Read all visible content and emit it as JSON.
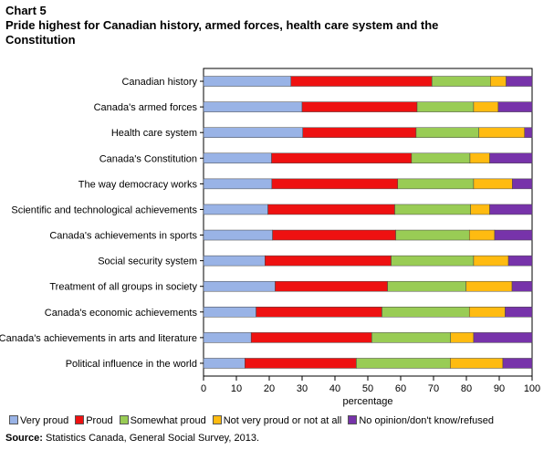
{
  "chart_label": "Chart 5",
  "title": "Pride highest for Canadian history, armed forces, health care system and the Constitution",
  "source_label": "Source:",
  "source_text": "Statistics Canada, General Social Survey, 2013.",
  "chart_data": {
    "type": "bar",
    "orientation": "horizontal",
    "stacked": true,
    "xlabel": "percentage",
    "xlim": [
      0,
      100
    ],
    "xticks": [
      0,
      10,
      20,
      30,
      40,
      50,
      60,
      70,
      80,
      90,
      100
    ],
    "grid": false,
    "legend_position": "bottom",
    "categories": [
      "Canadian history",
      "Canada's armed forces",
      "Health care system",
      "Canada's Constitution",
      "The way democracy works",
      "Scientific and technological achievements",
      "Canada's achievements in sports",
      "Social security system",
      "Treatment of all groups in society",
      "Canada's economic achievements",
      "Canada's achievements in arts and literature",
      "Political influence in the world"
    ],
    "series": [
      {
        "name": "Very proud",
        "color": "#99b3e6",
        "values": [
          26.6,
          30.0,
          30.2,
          20.7,
          20.8,
          19.6,
          21.0,
          18.7,
          21.8,
          16.0,
          14.5,
          12.6
        ]
      },
      {
        "name": "Proud",
        "color": "#ee1111",
        "values": [
          42.9,
          35.0,
          34.5,
          42.6,
          38.3,
          38.6,
          37.5,
          38.4,
          34.2,
          38.3,
          36.7,
          33.9
        ]
      },
      {
        "name": "Somewhat proud",
        "color": "#99cc55",
        "values": [
          17.8,
          17.2,
          19.1,
          17.8,
          23.1,
          23.1,
          22.4,
          25.1,
          23.9,
          26.6,
          24.0,
          28.6
        ]
      },
      {
        "name": "Not very proud or not at all",
        "color": "#ffbb11",
        "values": [
          4.8,
          7.5,
          13.9,
          6.0,
          11.8,
          5.8,
          7.7,
          10.6,
          14.0,
          10.9,
          7.0,
          16.0
        ]
      },
      {
        "name": "No opinion/don't know/refused",
        "color": "#7733aa",
        "values": [
          7.9,
          10.3,
          2.3,
          12.9,
          6.0,
          12.9,
          11.4,
          7.2,
          6.1,
          8.2,
          17.8,
          8.9
        ]
      }
    ]
  }
}
